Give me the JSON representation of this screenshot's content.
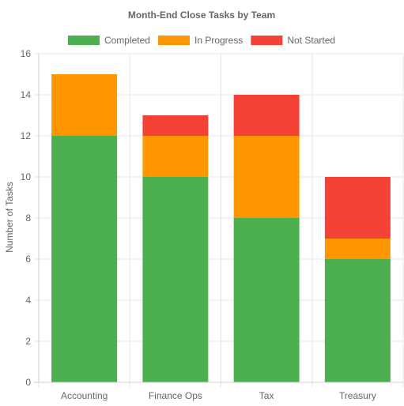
{
  "chart_data": {
    "type": "bar",
    "stacked": true,
    "title": "Month-End Close Tasks by Team",
    "xlabel": "",
    "ylabel": "Number of Tasks",
    "categories": [
      "Accounting",
      "Finance Ops",
      "Tax",
      "Treasury"
    ],
    "series": [
      {
        "name": "Completed",
        "color": "#4caf50",
        "values": [
          12,
          10,
          8,
          6
        ]
      },
      {
        "name": "In Progress",
        "color": "#ff9800",
        "values": [
          3,
          2,
          4,
          1
        ]
      },
      {
        "name": "Not Started",
        "color": "#f44336",
        "values": [
          0,
          1,
          2,
          3
        ]
      }
    ],
    "ylim": [
      0,
      16
    ],
    "yticks": [
      0,
      2,
      4,
      6,
      8,
      10,
      12,
      14,
      16
    ],
    "grid": true,
    "legend_position": "top-center"
  }
}
